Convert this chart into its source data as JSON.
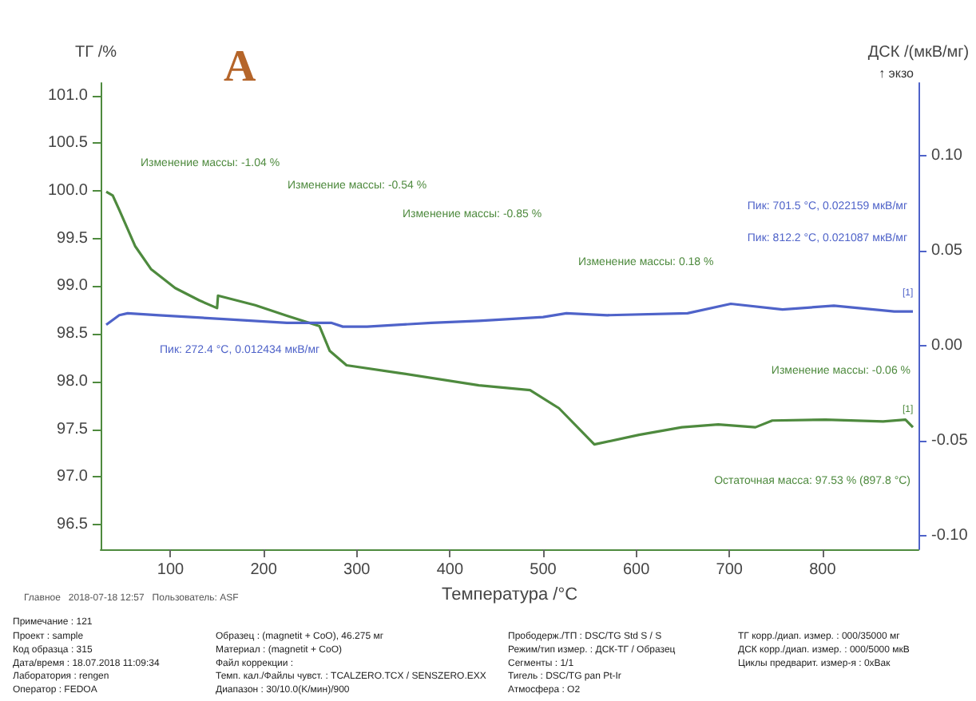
{
  "chart_data": {
    "type": "line",
    "xlabel": "Температура /°C",
    "ylabel": "ТГ /%",
    "y2label": "ДСК /(мкВ/мг)",
    "xlim": [
      25,
      903
    ],
    "xticks": [
      100,
      200,
      300,
      400,
      500,
      600,
      700,
      800
    ],
    "ylim": [
      96.24,
      101.13
    ],
    "yticks": [
      {
        "value": 96.5,
        "label": "96.5"
      },
      {
        "value": 97,
        "label": "97.0"
      },
      {
        "value": 97.5,
        "label": "97.5"
      },
      {
        "value": 98,
        "label": "98.0"
      },
      {
        "value": 98.5,
        "label": "98.5"
      },
      {
        "value": 99,
        "label": "99.0"
      },
      {
        "value": 99.5,
        "label": "99.5"
      },
      {
        "value": 100,
        "label": "100.0"
      },
      {
        "value": 100.5,
        "label": "100.5"
      },
      {
        "value": 101,
        "label": "101.0"
      }
    ],
    "y2lim": [
      -0.107,
      0.138
    ],
    "y2ticks": [
      {
        "value": -0.1,
        "label": "-0.10"
      },
      {
        "value": -0.05,
        "label": "-0.05"
      },
      {
        "value": 0,
        "label": "0.00"
      },
      {
        "value": 0.05,
        "label": "0.05"
      },
      {
        "value": 0.1,
        "label": "0.10"
      }
    ],
    "grid": false,
    "series": [
      {
        "color": "#4e8a3e",
        "x": [
          31,
          38,
          45,
          62,
          79,
          105,
          131,
          150,
          151,
          191,
          225,
          260,
          271,
          289,
          345,
          431,
          486,
          517,
          555,
          603,
          649,
          688,
          728,
          746,
          803,
          865,
          889,
          897
        ],
        "values": [
          99.99,
          99.95,
          99.8,
          99.42,
          99.18,
          98.98,
          98.85,
          98.77,
          98.9,
          98.8,
          98.69,
          98.58,
          98.32,
          98.17,
          98.09,
          97.96,
          97.91,
          97.72,
          97.34,
          97.44,
          97.52,
          97.55,
          97.52,
          97.59,
          97.6,
          97.58,
          97.6,
          97.52
        ]
      },
      {
        "color": "#4f63c9",
        "axis": "y2",
        "x": [
          31,
          45,
          54,
          88,
          157,
          225,
          260,
          272.4,
          285,
          311,
          380,
          431,
          500,
          525,
          569,
          655,
          701.5,
          757,
          812.2,
          877,
          897
        ],
        "values": [
          0.011,
          0.016,
          0.017,
          0.016,
          0.014,
          0.012,
          0.012,
          0.012,
          0.01,
          0.01,
          0.012,
          0.013,
          0.015,
          0.017,
          0.016,
          0.017,
          0.022,
          0.019,
          0.021,
          0.018,
          0.018
        ]
      }
    ],
    "annotations": [
      "A",
      "↑ экзо",
      "Изменение массы: -1.04 %",
      "Изменение массы: -0.54 %",
      "Изменение массы: -0.85 %",
      "Пик: 701.5 °C, 0.022159 мкВ/мг",
      "Пик: 812.2 °C, 0.021087 мкВ/мг",
      "Изменение массы: 0.18 %",
      "Пик: 272.4 °C, 0.012434 мкВ/мг",
      "Изменение массы: -0.06 %",
      "Остаточная масса: 97.53 % (897.8 °C)",
      "Главное   2018-07-18 12:57   Пользователь: ASF",
      "[1]",
      "[1]",
      "Примечание : 121",
      "Проект : sample",
      "Код образца : 315",
      "Дата/время : 18.07.2018 11:09:34",
      "Лаборатория : rengen",
      "Оператор : FEDOA",
      "Образец : (magnetit + CoO), 46.275 мг",
      "Материал : (magnetit + CoO)",
      "Файл коррекции :",
      "Темп. кал./Файлы чувст. : TCALZERO.TCX / SENSZERO.EXX",
      "Диапазон : 30/10.0(K/мин)/900",
      "Прободерж./ТП : DSC/TG Std S / S",
      "Режим/тип измер. : ДСК-ТГ / Образец",
      "Сегменты : 1/1",
      "Тигель : DSC/TG pan Pt-Ir",
      "Атмосфера : O2",
      "ТГ корр./диап. измер. : 000/35000 мг",
      "ДСК корр./диап. измер. : 000/5000 мкВ",
      "Циклы предварит. измер-я : 0xВак"
    ]
  }
}
